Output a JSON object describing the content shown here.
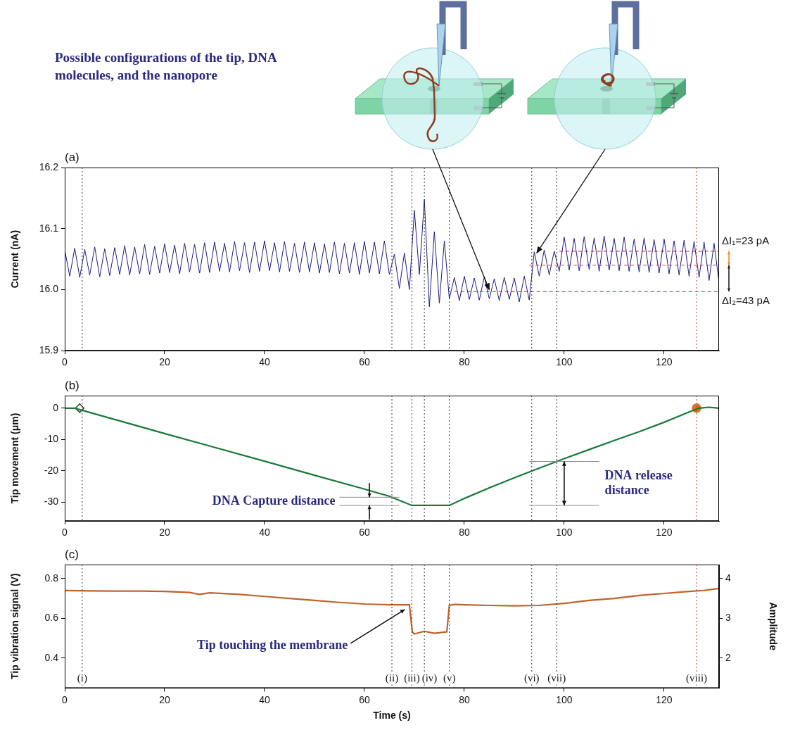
{
  "schematic": {
    "title": "Possible configurations of the tip, DNA molecules, and the nanopore",
    "pointers": [
      {
        "x": 85,
        "y": 16.0
      },
      {
        "x": 94.5,
        "y": 16.06
      }
    ]
  },
  "events": [
    {
      "label": "(i)",
      "x": 3.5,
      "color": "#333333"
    },
    {
      "label": "(ii)",
      "x": 65.5,
      "color": "#333333"
    },
    {
      "label": "(iii)",
      "x": 69.5,
      "color": "#333333"
    },
    {
      "label": "(iv)",
      "x": 72,
      "color": "#333333"
    },
    {
      "label": "(v)",
      "x": 77,
      "color": "#333333"
    },
    {
      "label": "(vi)",
      "x": 93.5,
      "color": "#333333"
    },
    {
      "label": "(vii)",
      "x": 98.5,
      "color": "#333333"
    },
    {
      "label": "(viii)",
      "x": 126.5,
      "color": "#cc3333"
    }
  ],
  "chart_data": [
    {
      "type": "line",
      "title": "(a)",
      "y_label": "Current (nA)",
      "color": "#1c1c84",
      "xlim": [
        0,
        131
      ],
      "xticks": [
        0,
        20,
        40,
        60,
        80,
        100,
        120
      ],
      "ylim": [
        15.9,
        16.2
      ],
      "yticks": [
        15.9,
        {
          "value": 16,
          "label": "16.0"
        },
        16.1,
        16.2
      ],
      "x": [
        0,
        1,
        2,
        3,
        4,
        5,
        6,
        7,
        8,
        9,
        10,
        11,
        12,
        13,
        14,
        15,
        16,
        17,
        18,
        19,
        20,
        21,
        22,
        23,
        24,
        25,
        26,
        27,
        28,
        29,
        30,
        31,
        32,
        33,
        34,
        35,
        36,
        37,
        38,
        39,
        40,
        41,
        42,
        43,
        44,
        45,
        46,
        47,
        48,
        49,
        50,
        51,
        52,
        53,
        54,
        55,
        56,
        57,
        58,
        59,
        60,
        61,
        62,
        63,
        64,
        65,
        66,
        67,
        68,
        69,
        70,
        71,
        72,
        73,
        74,
        75,
        76,
        77,
        78,
        79,
        80,
        81,
        82,
        83,
        84,
        85,
        86,
        87,
        88,
        89,
        90,
        91,
        92,
        93,
        94,
        95,
        96,
        97,
        98,
        99,
        100,
        101,
        102,
        103,
        104,
        105,
        106,
        107,
        108,
        109,
        110,
        111,
        112,
        113,
        114,
        115,
        116,
        117,
        118,
        119,
        120,
        121,
        122,
        123,
        124,
        125,
        126,
        127,
        128,
        129,
        130,
        131
      ],
      "values": [
        16.065,
        16.022,
        16.068,
        16.02,
        16.066,
        16.024,
        16.07,
        16.021,
        16.067,
        16.023,
        16.069,
        16.025,
        16.072,
        16.024,
        16.07,
        16.026,
        16.074,
        16.025,
        16.071,
        16.027,
        16.075,
        16.028,
        16.073,
        16.026,
        16.076,
        16.029,
        16.074,
        16.027,
        16.077,
        16.028,
        16.078,
        16.03,
        16.076,
        16.029,
        16.079,
        16.031,
        16.077,
        16.028,
        16.078,
        16.03,
        16.08,
        16.031,
        16.077,
        16.029,
        16.079,
        16.03,
        16.076,
        16.028,
        16.078,
        16.029,
        16.077,
        16.027,
        16.075,
        16.028,
        16.078,
        16.026,
        16.076,
        16.027,
        16.077,
        16.025,
        16.079,
        16.027,
        16.078,
        16.026,
        16.08,
        16.025,
        16.058,
        16.002,
        16.06,
        16.0,
        16.13,
        16.025,
        16.148,
        15.972,
        16.095,
        15.978,
        16.08,
        15.985,
        16.02,
        15.982,
        16.022,
        15.984,
        16.019,
        15.983,
        16.021,
        15.985,
        16.018,
        15.982,
        16.02,
        15.984,
        16.019,
        15.98,
        16.022,
        15.983,
        16.062,
        16.022,
        16.065,
        16.024,
        16.063,
        16.03,
        16.086,
        16.032,
        16.084,
        16.031,
        16.087,
        16.033,
        16.085,
        16.03,
        16.088,
        16.032,
        16.084,
        16.031,
        16.086,
        16.03,
        16.083,
        16.029,
        16.085,
        16.028,
        16.082,
        16.027,
        16.083,
        16.026,
        16.08,
        16.024,
        16.081,
        16.022,
        16.079,
        16.02,
        16.078,
        16.015,
        16.076,
        16.012
      ],
      "reference_lines": [
        {
          "y": 16.063,
          "x_from": 99,
          "color": "#d94040"
        },
        {
          "y": 16.04,
          "x_from": 93,
          "color": "#d94040"
        },
        {
          "y": 15.997,
          "x_from": 78,
          "color": "#d94040"
        }
      ],
      "delta_annotations": [
        {
          "text": "ΔI₁=23 pA",
          "y": [
            16.04,
            16.063
          ],
          "color": "#f08c1e"
        },
        {
          "text": "ΔI₂=43 pA",
          "y": [
            15.997,
            16.04
          ],
          "color": "#222222"
        }
      ]
    },
    {
      "type": "line",
      "title": "(b)",
      "y_label": "Tip movement (μm)",
      "xlim": [
        0,
        131
      ],
      "xticks": [
        0,
        20,
        40,
        60,
        80,
        100,
        120
      ],
      "ylim": [
        -36,
        4
      ],
      "yticks": [
        -30,
        -20,
        -10,
        0
      ],
      "series": [
        {
          "x": [
            0,
            2,
            10,
            20,
            30,
            40,
            50,
            60,
            65,
            69.5,
            77,
            80,
            85,
            90,
            95,
            100,
            105,
            110,
            115,
            120,
            125,
            127,
            129,
            131
          ],
          "values": [
            0,
            0,
            -3.6,
            -8.1,
            -12.5,
            -16.9,
            -21.4,
            -25.8,
            -28.1,
            -31,
            -31,
            -28.8,
            -25.4,
            -22.2,
            -19.1,
            -16.1,
            -13.2,
            -10.3,
            -7.5,
            -4.5,
            -1.2,
            0,
            0.3,
            0
          ],
          "color": "#1a7a3a"
        },
        {
          "x": [
            3
          ],
          "values": [
            0
          ],
          "color": "#333333",
          "marker": "diamond"
        },
        {
          "x": [
            126.5
          ],
          "values": [
            0
          ],
          "color": "#e07020",
          "marker": "circle"
        }
      ],
      "distance_annotations": [
        {
          "text": "DNA Capture distance",
          "y": [
            -31,
            -28.4
          ],
          "x": [
            55,
            67
          ]
        },
        {
          "text": "DNA release distance",
          "y": [
            -31,
            -17
          ],
          "x": [
            93,
            107
          ]
        }
      ]
    },
    {
      "type": "line",
      "title": "(c)",
      "x_label": "Time (s)",
      "y_label": "Tip vibration signal (V)",
      "y2_label": "Amplitude",
      "color": "#c0622b",
      "xlim": [
        0,
        131
      ],
      "xticks": [
        0,
        20,
        40,
        60,
        80,
        100,
        120
      ],
      "ylim": [
        0.25,
        0.87
      ],
      "yticks": [
        0.4,
        0.6,
        0.8
      ],
      "y2lim": [
        1.25,
        4.35
      ],
      "y2ticks": [
        2,
        3,
        4
      ],
      "x": [
        0,
        5,
        10,
        15,
        20,
        25,
        27,
        29,
        35,
        40,
        45,
        50,
        55,
        60,
        65,
        69,
        69.6,
        70,
        72,
        74,
        76.5,
        77,
        78,
        80,
        85,
        90,
        95,
        100,
        105,
        110,
        115,
        120,
        125,
        128,
        131
      ],
      "values": [
        0.74,
        0.738,
        0.737,
        0.737,
        0.735,
        0.73,
        0.72,
        0.728,
        0.72,
        0.71,
        0.7,
        0.69,
        0.68,
        0.672,
        0.668,
        0.668,
        0.53,
        0.522,
        0.535,
        0.525,
        0.532,
        0.665,
        0.67,
        0.668,
        0.665,
        0.663,
        0.665,
        0.675,
        0.69,
        0.7,
        0.715,
        0.725,
        0.735,
        0.74,
        0.75
      ],
      "annotations": [
        {
          "text": "Tip touching the membrane",
          "x": 68.5,
          "y": 0.655
        }
      ]
    }
  ]
}
